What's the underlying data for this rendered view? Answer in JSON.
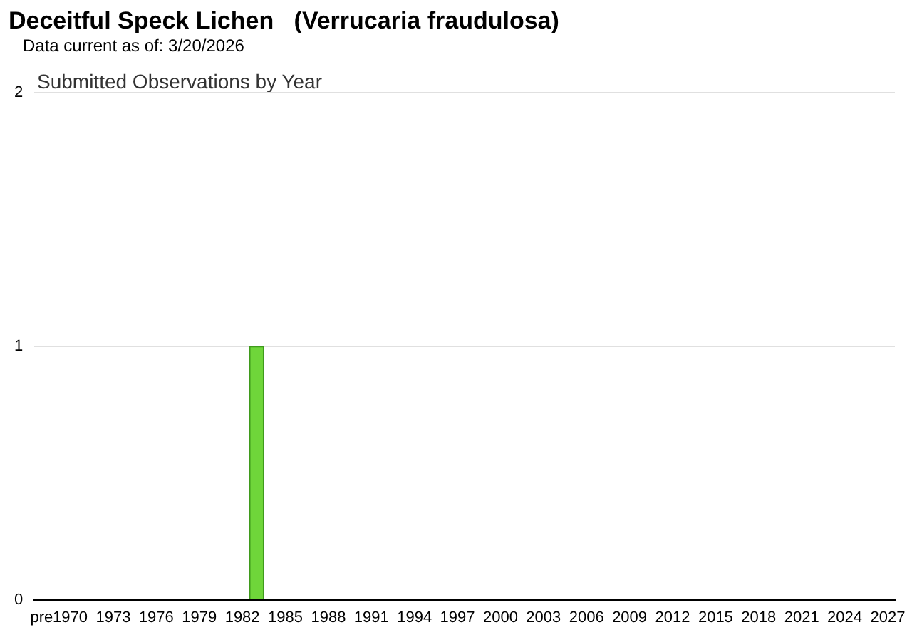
{
  "chart_data": {
    "type": "bar",
    "title": "Deceitful Speck Lichen   (Verrucaria fraudulosa)",
    "subtitle": "Submitted Observations by Year",
    "annotations": [
      "Data current as of: 3/20/2026"
    ],
    "categories": [
      "pre",
      null,
      "1970",
      null,
      null,
      "1973",
      null,
      null,
      "1976",
      null,
      null,
      "1979",
      null,
      null,
      "1982",
      null,
      null,
      "1985",
      null,
      null,
      "1988",
      null,
      null,
      "1991",
      null,
      null,
      "1994",
      null,
      null,
      "1997",
      null,
      null,
      "2000",
      null,
      null,
      "2003",
      null,
      null,
      "2006",
      null,
      null,
      "2009",
      null,
      null,
      "2012",
      null,
      null,
      "2015",
      null,
      null,
      "2018",
      null,
      null,
      "2021",
      null,
      null,
      "2024",
      null,
      null,
      "2027"
    ],
    "values": [
      0,
      0,
      0,
      0,
      0,
      0,
      0,
      0,
      0,
      0,
      0,
      0,
      0,
      0,
      0,
      1,
      0,
      0,
      0,
      0,
      0,
      0,
      0,
      0,
      0,
      0,
      0,
      0,
      0,
      0,
      0,
      0,
      0,
      0,
      0,
      0,
      0,
      0,
      0,
      0,
      0,
      0,
      0,
      0,
      0,
      0,
      0,
      0,
      0,
      0,
      0,
      0,
      0,
      0,
      0,
      0,
      0,
      0,
      0,
      0
    ],
    "color": "#6fd63a",
    "ylim": [
      0,
      2
    ],
    "yticks": [
      0,
      1,
      2
    ],
    "grid": "y",
    "legend": false
  }
}
